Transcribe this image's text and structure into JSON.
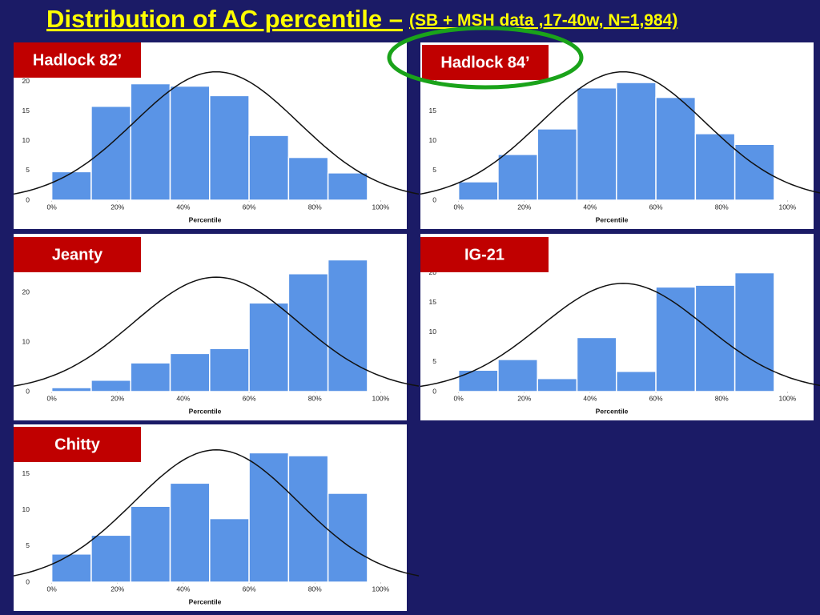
{
  "title": "Distribution of AC percentile –",
  "subtitle": "(SB + MSH data ,17-40w, N=1,984)",
  "chart_data": [
    {
      "type": "histogram",
      "title": "Hadlock 82’",
      "x_label": "Percentile",
      "color": "#5a94e6",
      "bins": [
        0,
        12,
        24,
        36,
        48,
        60,
        72,
        84,
        96
      ],
      "values": [
        4.8,
        15.8,
        19.6,
        19.2,
        17.6,
        10.9,
        7.2,
        4.6
      ],
      "fit": {
        "mean": 50,
        "sd": 25,
        "peak": 21.6
      },
      "xlim": [
        -6,
        106
      ],
      "ylim": [
        0,
        22.5
      ],
      "xticks": [
        {
          "value": 0,
          "label": "0%"
        },
        {
          "value": 20,
          "label": "20%"
        },
        {
          "value": 40,
          "label": "40%"
        },
        {
          "value": 60,
          "label": "60%"
        },
        {
          "value": 80,
          "label": "80%"
        },
        {
          "value": 100,
          "label": "100%"
        }
      ],
      "yticks": [
        0,
        5,
        10,
        15,
        20
      ]
    },
    {
      "type": "histogram",
      "title": "Hadlock 84’",
      "x_label": "Percentile",
      "color": "#5a94e6",
      "highlight": "#1aa31a",
      "bins": [
        0,
        12,
        24,
        36,
        48,
        60,
        72,
        84,
        96
      ],
      "values": [
        3.1,
        7.7,
        12.0,
        18.9,
        19.8,
        17.3,
        11.2,
        9.4
      ],
      "fit": {
        "mean": 50,
        "sd": 25,
        "peak": 21.6
      },
      "xlim": [
        -6,
        106
      ],
      "ylim": [
        0,
        22.5
      ],
      "xticks": [
        {
          "value": 0,
          "label": "0%"
        },
        {
          "value": 20,
          "label": "20%"
        },
        {
          "value": 40,
          "label": "40%"
        },
        {
          "value": 60,
          "label": "60%"
        },
        {
          "value": 80,
          "label": "80%"
        },
        {
          "value": 100,
          "label": "100%"
        }
      ],
      "yticks": [
        0,
        5,
        10,
        15,
        20
      ]
    },
    {
      "type": "histogram",
      "title": "Jeanty",
      "x_label": "Percentile",
      "color": "#5a94e6",
      "bins": [
        0,
        12,
        24,
        36,
        48,
        60,
        72,
        84,
        96
      ],
      "values": [
        0.8,
        2.3,
        5.8,
        7.7,
        8.7,
        17.9,
        23.8,
        26.6
      ],
      "fit": {
        "mean": 50,
        "sd": 25,
        "peak": 23.1
      },
      "xlim": [
        -6,
        106
      ],
      "ylim": [
        0,
        27
      ],
      "xticks": [
        {
          "value": 0,
          "label": "0%"
        },
        {
          "value": 20,
          "label": "20%"
        },
        {
          "value": 40,
          "label": "40%"
        },
        {
          "value": 60,
          "label": "60%"
        },
        {
          "value": 80,
          "label": "80%"
        },
        {
          "value": 100,
          "label": "100%"
        }
      ],
      "yticks": [
        0,
        10,
        20
      ]
    },
    {
      "type": "histogram",
      "title": "IG-21",
      "x_label": "Percentile",
      "color": "#5a94e6",
      "bins": [
        0,
        12,
        24,
        36,
        48,
        60,
        72,
        84,
        96
      ],
      "values": [
        3.6,
        5.4,
        2.2,
        9.1,
        3.4,
        17.6,
        17.9,
        20.0
      ],
      "fit": {
        "mean": 50,
        "sd": 25,
        "peak": 18.2
      },
      "xlim": [
        -6,
        106
      ],
      "ylim": [
        0,
        22.5
      ],
      "xticks": [
        {
          "value": 0,
          "label": "0%"
        },
        {
          "value": 20,
          "label": "20%"
        },
        {
          "value": 40,
          "label": "40%"
        },
        {
          "value": 60,
          "label": "60%"
        },
        {
          "value": 80,
          "label": "80%"
        },
        {
          "value": 100,
          "label": "100%"
        }
      ],
      "yticks": [
        0,
        5,
        10,
        15,
        20
      ]
    },
    {
      "type": "histogram",
      "title": "Chitty",
      "x_label": "Percentile",
      "color": "#5a94e6",
      "bins": [
        0,
        12,
        24,
        36,
        48,
        60,
        72,
        84,
        96
      ],
      "values": [
        3.9,
        6.5,
        10.5,
        13.7,
        8.8,
        17.9,
        17.5,
        12.3
      ],
      "fit": {
        "mean": 50,
        "sd": 25,
        "peak": 18.3
      },
      "xlim": [
        -6,
        106
      ],
      "ylim": [
        0,
        18.5
      ],
      "xticks": [
        {
          "value": 0,
          "label": "0%"
        },
        {
          "value": 20,
          "label": "20%"
        },
        {
          "value": 40,
          "label": "40%"
        },
        {
          "value": 60,
          "label": "60%"
        },
        {
          "value": 80,
          "label": "80%"
        },
        {
          "value": 100,
          "label": "100%"
        }
      ],
      "yticks": [
        0,
        5,
        10,
        15
      ]
    }
  ]
}
